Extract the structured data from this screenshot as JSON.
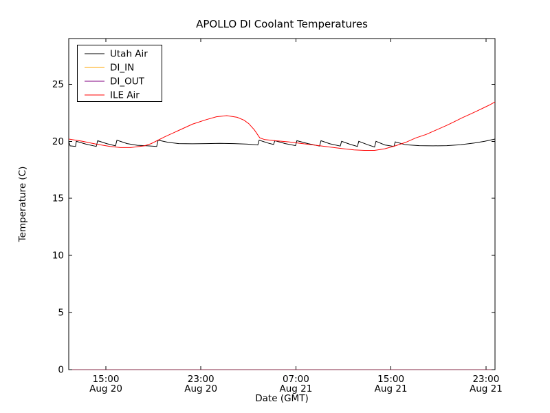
{
  "figure": {
    "title": "APOLLO DI Coolant Temperatures",
    "xlabel": "Date (GMT)",
    "ylabel": "Temperature (C)",
    "background_color": "#ffffff",
    "axis_color": "#000000"
  },
  "axes": {
    "xlim": [
      11.875,
      47.76
    ],
    "ylim": [
      0,
      29.0
    ],
    "x_unit": "hours since Aug 20 00:00 GMT",
    "xticks": [
      {
        "value": 15,
        "time": "15:00",
        "date": "Aug 20"
      },
      {
        "value": 23,
        "time": "23:00",
        "date": "Aug 20"
      },
      {
        "value": 31,
        "time": "07:00",
        "date": "Aug 21"
      },
      {
        "value": 39,
        "time": "15:00",
        "date": "Aug 21"
      },
      {
        "value": 47,
        "time": "23:00",
        "date": "Aug 21"
      }
    ],
    "yticks": [
      0,
      5,
      10,
      15,
      20,
      25
    ],
    "grid": false
  },
  "legend": {
    "position": "upper left",
    "entries": [
      {
        "label": "Utah Air",
        "color": "#000000"
      },
      {
        "label": "DI_IN",
        "color": "#ffa500"
      },
      {
        "label": "DI_OUT",
        "color": "#800080"
      },
      {
        "label": "ILE Air",
        "color": "#ff0000"
      }
    ]
  },
  "chart_data": {
    "type": "line",
    "title": "APOLLO DI Coolant Temperatures",
    "xlabel": "Date (GMT)",
    "ylabel": "Temperature (C)",
    "xlim": [
      11.875,
      47.76
    ],
    "ylim": [
      0,
      29.0
    ],
    "legend_position": "upper left",
    "grid": false,
    "series": [
      {
        "name": "Utah Air",
        "color": "#000000",
        "opacity": 1,
        "points": [
          [
            11.88,
            19.95
          ],
          [
            11.99,
            19.6
          ],
          [
            12.45,
            19.55
          ],
          [
            12.51,
            20.0
          ],
          [
            13.32,
            19.75
          ],
          [
            14.19,
            19.55
          ],
          [
            14.31,
            20.05
          ],
          [
            15.06,
            19.8
          ],
          [
            15.81,
            19.6
          ],
          [
            15.93,
            20.1
          ],
          [
            16.79,
            19.8
          ],
          [
            17.66,
            19.65
          ],
          [
            18.53,
            19.6
          ],
          [
            19.28,
            19.55
          ],
          [
            19.4,
            20.1
          ],
          [
            20.27,
            19.9
          ],
          [
            21.13,
            19.8
          ],
          [
            22.29,
            19.78
          ],
          [
            23.45,
            19.8
          ],
          [
            24.6,
            19.82
          ],
          [
            25.76,
            19.8
          ],
          [
            26.92,
            19.75
          ],
          [
            27.79,
            19.68
          ],
          [
            27.9,
            20.1
          ],
          [
            28.65,
            19.85
          ],
          [
            29.12,
            19.72
          ],
          [
            29.23,
            20.05
          ],
          [
            30.1,
            19.8
          ],
          [
            30.97,
            19.62
          ],
          [
            31.08,
            20.05
          ],
          [
            32.01,
            19.8
          ],
          [
            32.99,
            19.58
          ],
          [
            33.11,
            20.05
          ],
          [
            33.86,
            19.78
          ],
          [
            34.73,
            19.58
          ],
          [
            34.85,
            20.0
          ],
          [
            35.6,
            19.72
          ],
          [
            36.18,
            19.55
          ],
          [
            36.29,
            20.0
          ],
          [
            37.05,
            19.7
          ],
          [
            37.62,
            19.5
          ],
          [
            37.74,
            20.0
          ],
          [
            38.49,
            19.68
          ],
          [
            39.25,
            19.55
          ],
          [
            39.36,
            19.95
          ],
          [
            40.23,
            19.7
          ],
          [
            41.38,
            19.62
          ],
          [
            42.54,
            19.6
          ],
          [
            43.7,
            19.62
          ],
          [
            44.86,
            19.7
          ],
          [
            46.02,
            19.85
          ],
          [
            46.89,
            20.0
          ],
          [
            47.76,
            20.2
          ]
        ]
      },
      {
        "name": "DI_IN",
        "color": "#ffa500",
        "opacity": 0.55,
        "points": [
          [
            11.875,
            0
          ],
          [
            47.76,
            0
          ]
        ]
      },
      {
        "name": "DI_OUT",
        "color": "#800080",
        "opacity": 0.55,
        "points": [
          [
            11.875,
            0
          ],
          [
            47.76,
            0
          ]
        ]
      },
      {
        "name": "ILE Air",
        "color": "#ff0000",
        "opacity": 1,
        "points": [
          [
            11.88,
            20.2
          ],
          [
            13.03,
            20.0
          ],
          [
            14.19,
            19.75
          ],
          [
            15.35,
            19.55
          ],
          [
            16.22,
            19.45
          ],
          [
            17.08,
            19.45
          ],
          [
            18.24,
            19.6
          ],
          [
            18.82,
            19.8
          ],
          [
            19.98,
            20.4
          ],
          [
            21.13,
            20.95
          ],
          [
            22.29,
            21.5
          ],
          [
            23.45,
            21.9
          ],
          [
            24.31,
            22.15
          ],
          [
            25.18,
            22.25
          ],
          [
            26.05,
            22.1
          ],
          [
            26.63,
            21.85
          ],
          [
            27.03,
            21.55
          ],
          [
            27.5,
            21.0
          ],
          [
            27.96,
            20.3
          ],
          [
            28.37,
            20.15
          ],
          [
            29.23,
            20.05
          ],
          [
            30.39,
            19.95
          ],
          [
            31.55,
            19.8
          ],
          [
            32.71,
            19.65
          ],
          [
            33.86,
            19.5
          ],
          [
            35.02,
            19.35
          ],
          [
            35.89,
            19.25
          ],
          [
            36.76,
            19.2
          ],
          [
            37.62,
            19.2
          ],
          [
            38.49,
            19.35
          ],
          [
            39.36,
            19.6
          ],
          [
            40.23,
            19.9
          ],
          [
            41.1,
            20.3
          ],
          [
            41.96,
            20.6
          ],
          [
            42.83,
            21.0
          ],
          [
            43.7,
            21.4
          ],
          [
            44.39,
            21.75
          ],
          [
            44.97,
            22.05
          ],
          [
            45.61,
            22.35
          ],
          [
            46.24,
            22.65
          ],
          [
            46.94,
            23.0
          ],
          [
            47.34,
            23.2
          ],
          [
            47.76,
            23.45
          ]
        ]
      }
    ]
  }
}
